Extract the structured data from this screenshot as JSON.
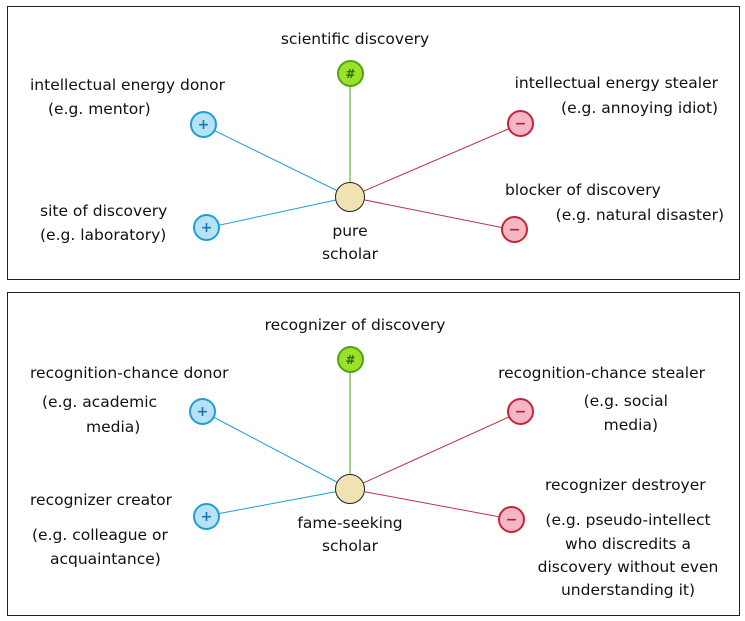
{
  "colors": {
    "positive": "#1c9fd9",
    "negative": "#b53545",
    "hash": "#4ea50f",
    "center": "#f1e2b3"
  },
  "icons": {
    "plus": "+",
    "minus": "−",
    "hash": "#"
  },
  "top": {
    "center_label_line1": "pure",
    "center_label_line2": "scholar",
    "top_node_label": "scientific discovery",
    "left_upper_label_line1": "intellectual energy donor",
    "left_upper_label_line2": "(e.g. mentor)",
    "left_lower_label_line1": "site of discovery",
    "left_lower_label_line2": "(e.g. laboratory)",
    "right_upper_label_line1": "intellectual energy stealer",
    "right_upper_label_line2": "(e.g. annoying idiot)",
    "right_lower_label_line1": "blocker of discovery",
    "right_lower_label_line2": "(e.g. natural disaster)"
  },
  "bottom": {
    "center_label_line1": "fame-seeking",
    "center_label_line2": "scholar",
    "top_node_label": "recognizer of discovery",
    "left_upper_label_line1": "recognition-chance donor",
    "left_upper_label_line2": "(e.g. academic",
    "left_upper_label_line3": "media)",
    "left_lower_label_line1": "recognizer creator",
    "left_lower_label_line2": "(e.g. colleague or",
    "left_lower_label_line3": "acquaintance)",
    "right_upper_label_line1": "recognition-chance stealer",
    "right_upper_label_line2": "(e.g. social",
    "right_upper_label_line3": "media)",
    "right_lower_label_line1": "recognizer destroyer",
    "right_lower_label_line2": "(e.g. pseudo-intellect",
    "right_lower_label_line3": "who discredits a",
    "right_lower_label_line4": "discovery without even",
    "right_lower_label_line5": "understanding it)"
  }
}
